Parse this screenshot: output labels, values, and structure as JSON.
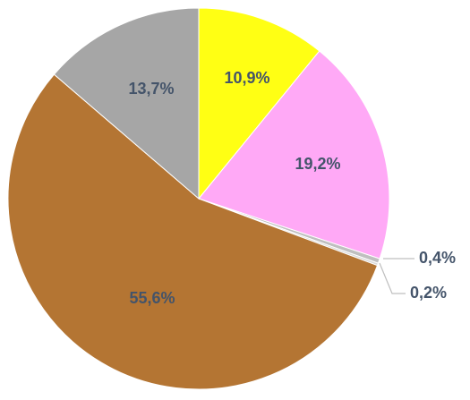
{
  "chart_data": {
    "type": "pie",
    "start_angle_deg": 0,
    "direction": "clockwise",
    "slices": [
      {
        "label": "10,9%",
        "value": 10.9,
        "color": "#FFFF14"
      },
      {
        "label": "19,2%",
        "value": 19.2,
        "color": "#FFA9F6"
      },
      {
        "label": "0,4%",
        "value": 0.4,
        "color": "#BFBFBF"
      },
      {
        "label": "0,2%",
        "value": 0.2,
        "color": "#D9D9D9"
      },
      {
        "label": "55,6%",
        "value": 55.6,
        "color": "#B47533"
      },
      {
        "label": "13,7%",
        "value": 13.7,
        "color": "#A6A6A6"
      }
    ],
    "label_color": "#44546A",
    "leader_line_color": "#BFBFBF"
  }
}
